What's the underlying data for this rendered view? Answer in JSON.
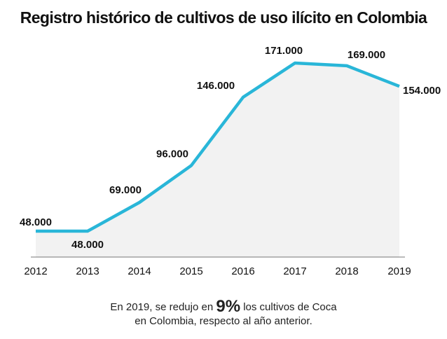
{
  "chart_data": {
    "type": "area",
    "title": "Registro histórico de cultivos de uso ilícito en Colombia",
    "categories": [
      "2012",
      "2013",
      "2014",
      "2015",
      "2016",
      "2017",
      "2018",
      "2019"
    ],
    "values": [
      48000,
      48000,
      69000,
      96000,
      146000,
      171000,
      169000,
      154000
    ],
    "data_labels": [
      "48.000",
      "48.000",
      "69.000",
      "96.000",
      "146.000",
      "171.000",
      "169.000",
      "154.000"
    ],
    "xlabel": "",
    "ylabel": "",
    "grid": false,
    "line_color": "#29b6d8",
    "fill_color": "#f2f2f2"
  },
  "caption": {
    "line1_before": "En 2019, se redujo en ",
    "highlight": "9%",
    "line1_after": " los cultivos de Coca",
    "line2": "en Colombia, respecto al año anterior."
  }
}
